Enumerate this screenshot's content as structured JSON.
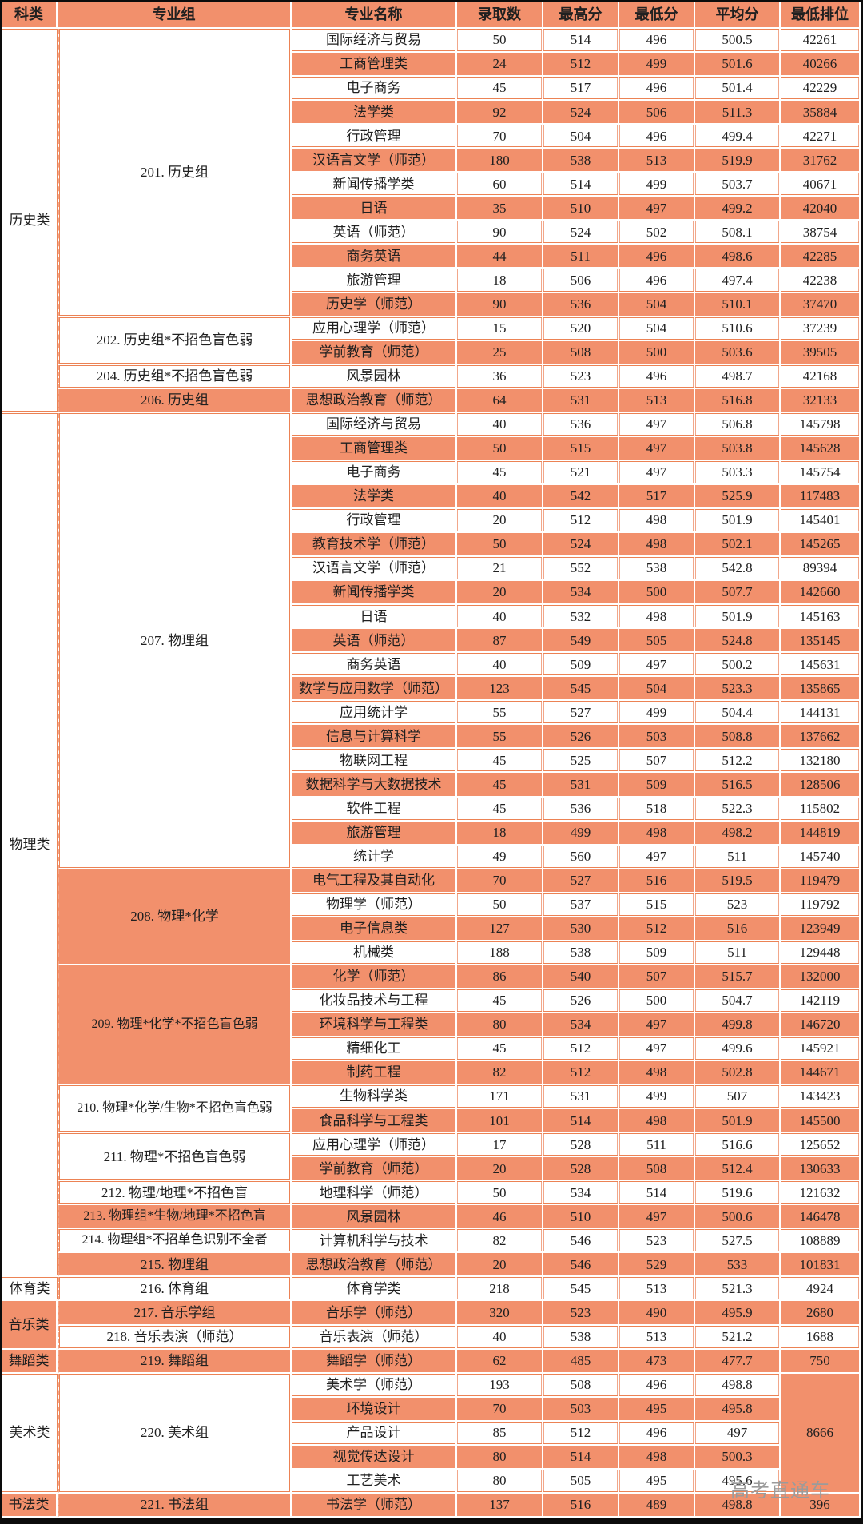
{
  "header": {
    "columns": [
      "科类",
      "专业组",
      "专业名称",
      "录取数",
      "最高分",
      "最低分",
      "平均分",
      "最低排位"
    ]
  },
  "colors": {
    "salmon_fill": "#F2906C",
    "hairline": "#EC8254",
    "dashed_line": "#F2A78A",
    "text": "#202020",
    "watermark_gray": "#9B9B9B"
  },
  "watermark": "高考直通车",
  "categories": [
    {
      "name": "历史类",
      "bg": "white",
      "groups": [
        {
          "label": "201. 历史组",
          "bg": "white",
          "rows": [
            {
              "major": "国际经济与贸易",
              "count": "50",
              "max": "514",
              "min": "496",
              "avg": "500.5",
              "rank": "42261"
            },
            {
              "major": "工商管理类",
              "count": "24",
              "max": "512",
              "min": "499",
              "avg": "501.6",
              "rank": "40266"
            },
            {
              "major": "电子商务",
              "count": "45",
              "max": "517",
              "min": "496",
              "avg": "501.4",
              "rank": "42229"
            },
            {
              "major": "法学类",
              "count": "92",
              "max": "524",
              "min": "506",
              "avg": "511.3",
              "rank": "35884"
            },
            {
              "major": "行政管理",
              "count": "70",
              "max": "504",
              "min": "496",
              "avg": "499.4",
              "rank": "42271"
            },
            {
              "major": "汉语言文学（师范）",
              "count": "180",
              "max": "538",
              "min": "513",
              "avg": "519.9",
              "rank": "31762"
            },
            {
              "major": "新闻传播学类",
              "count": "60",
              "max": "514",
              "min": "499",
              "avg": "503.7",
              "rank": "40671"
            },
            {
              "major": "日语",
              "count": "35",
              "max": "510",
              "min": "497",
              "avg": "499.2",
              "rank": "42040"
            },
            {
              "major": "英语（师范）",
              "count": "90",
              "max": "524",
              "min": "502",
              "avg": "508.1",
              "rank": "38754"
            },
            {
              "major": "商务英语",
              "count": "44",
              "max": "511",
              "min": "496",
              "avg": "498.6",
              "rank": "42285"
            },
            {
              "major": "旅游管理",
              "count": "18",
              "max": "506",
              "min": "496",
              "avg": "497.4",
              "rank": "42238"
            },
            {
              "major": "历史学（师范）",
              "count": "90",
              "max": "536",
              "min": "504",
              "avg": "510.1",
              "rank": "37470"
            }
          ]
        },
        {
          "label": "202. 历史组*不招色盲色弱",
          "bg": "white",
          "rows": [
            {
              "major": "应用心理学（师范）",
              "count": "15",
              "max": "520",
              "min": "504",
              "avg": "510.6",
              "rank": "37239"
            },
            {
              "major": "学前教育（师范）",
              "count": "25",
              "max": "508",
              "min": "500",
              "avg": "503.6",
              "rank": "39505"
            }
          ]
        },
        {
          "label": "204. 历史组*不招色盲色弱",
          "bg": "white",
          "rows": [
            {
              "major": "风景园林",
              "count": "36",
              "max": "523",
              "min": "496",
              "avg": "498.7",
              "rank": "42168"
            }
          ]
        },
        {
          "label": "206. 历史组",
          "bg": "salmon",
          "rows": [
            {
              "major": "思想政治教育（师范）",
              "count": "64",
              "max": "531",
              "min": "513",
              "avg": "516.8",
              "rank": "32133"
            }
          ]
        }
      ]
    },
    {
      "name": "物理类",
      "bg": "white",
      "groups": [
        {
          "label": "207. 物理组",
          "bg": "white",
          "rows": [
            {
              "major": "国际经济与贸易",
              "count": "40",
              "max": "536",
              "min": "497",
              "avg": "506.8",
              "rank": "145798"
            },
            {
              "major": "工商管理类",
              "count": "50",
              "max": "515",
              "min": "497",
              "avg": "503.8",
              "rank": "145628"
            },
            {
              "major": "电子商务",
              "count": "45",
              "max": "521",
              "min": "497",
              "avg": "503.3",
              "rank": "145754"
            },
            {
              "major": "法学类",
              "count": "40",
              "max": "542",
              "min": "517",
              "avg": "525.9",
              "rank": "117483"
            },
            {
              "major": "行政管理",
              "count": "20",
              "max": "512",
              "min": "498",
              "avg": "501.9",
              "rank": "145401"
            },
            {
              "major": "教育技术学（师范）",
              "count": "50",
              "max": "524",
              "min": "498",
              "avg": "502.1",
              "rank": "145265"
            },
            {
              "major": "汉语言文学（师范）",
              "count": "21",
              "max": "552",
              "min": "538",
              "avg": "542.8",
              "rank": "89394"
            },
            {
              "major": "新闻传播学类",
              "count": "20",
              "max": "534",
              "min": "500",
              "avg": "507.7",
              "rank": "142660"
            },
            {
              "major": "日语",
              "count": "40",
              "max": "532",
              "min": "498",
              "avg": "501.9",
              "rank": "145163"
            },
            {
              "major": "英语（师范）",
              "count": "87",
              "max": "549",
              "min": "505",
              "avg": "524.8",
              "rank": "135145"
            },
            {
              "major": "商务英语",
              "count": "40",
              "max": "509",
              "min": "497",
              "avg": "500.2",
              "rank": "145631"
            },
            {
              "major": "数学与应用数学（师范）",
              "count": "123",
              "max": "545",
              "min": "504",
              "avg": "523.3",
              "rank": "135865"
            },
            {
              "major": "应用统计学",
              "count": "55",
              "max": "527",
              "min": "499",
              "avg": "504.4",
              "rank": "144131"
            },
            {
              "major": "信息与计算科学",
              "count": "55",
              "max": "526",
              "min": "503",
              "avg": "508.8",
              "rank": "137662"
            },
            {
              "major": "物联网工程",
              "count": "45",
              "max": "525",
              "min": "507",
              "avg": "512.2",
              "rank": "132180"
            },
            {
              "major": "数据科学与大数据技术",
              "count": "45",
              "max": "531",
              "min": "509",
              "avg": "516.5",
              "rank": "128506"
            },
            {
              "major": "软件工程",
              "count": "45",
              "max": "536",
              "min": "518",
              "avg": "522.3",
              "rank": "115802"
            },
            {
              "major": "旅游管理",
              "count": "18",
              "max": "499",
              "min": "498",
              "avg": "498.2",
              "rank": "144819"
            },
            {
              "major": "统计学",
              "count": "49",
              "max": "560",
              "min": "497",
              "avg": "511",
              "rank": "145740"
            }
          ]
        },
        {
          "label": "208. 物理*化学",
          "bg": "salmon",
          "rows": [
            {
              "major": "电气工程及其自动化",
              "count": "70",
              "max": "527",
              "min": "516",
              "avg": "519.5",
              "rank": "119479"
            },
            {
              "major": "物理学（师范）",
              "count": "50",
              "max": "537",
              "min": "515",
              "avg": "523",
              "rank": "119792"
            },
            {
              "major": "电子信息类",
              "count": "127",
              "max": "530",
              "min": "512",
              "avg": "516",
              "rank": "123949"
            },
            {
              "major": "机械类",
              "count": "188",
              "max": "538",
              "min": "509",
              "avg": "511",
              "rank": "129448"
            }
          ]
        },
        {
          "label": "209. 物理*化学*不招色盲色弱",
          "bg": "salmon",
          "rows": [
            {
              "major": "化学（师范）",
              "count": "86",
              "max": "540",
              "min": "507",
              "avg": "515.7",
              "rank": "132000"
            },
            {
              "major": "化妆品技术与工程",
              "count": "45",
              "max": "526",
              "min": "500",
              "avg": "504.7",
              "rank": "142119"
            },
            {
              "major": "环境科学与工程类",
              "count": "80",
              "max": "534",
              "min": "497",
              "avg": "499.8",
              "rank": "146720"
            },
            {
              "major": "精细化工",
              "count": "45",
              "max": "512",
              "min": "497",
              "avg": "499.6",
              "rank": "145921"
            },
            {
              "major": "制药工程",
              "count": "82",
              "max": "512",
              "min": "498",
              "avg": "502.8",
              "rank": "144671"
            }
          ]
        },
        {
          "label": "210. 物理*化学/生物*不招色盲色弱",
          "bg": "white",
          "rows": [
            {
              "major": "生物科学类",
              "count": "171",
              "max": "531",
              "min": "499",
              "avg": "507",
              "rank": "143423"
            },
            {
              "major": "食品科学与工程类",
              "count": "101",
              "max": "514",
              "min": "498",
              "avg": "501.9",
              "rank": "145500"
            }
          ]
        },
        {
          "label": "211. 物理*不招色盲色弱",
          "bg": "white",
          "rows": [
            {
              "major": "应用心理学（师范）",
              "count": "17",
              "max": "528",
              "min": "511",
              "avg": "516.6",
              "rank": "125652"
            },
            {
              "major": "学前教育（师范）",
              "count": "20",
              "max": "528",
              "min": "508",
              "avg": "512.4",
              "rank": "130633"
            }
          ]
        },
        {
          "label": "212. 物理/地理*不招色盲",
          "bg": "white",
          "rows": [
            {
              "major": "地理科学（师范）",
              "count": "50",
              "max": "534",
              "min": "514",
              "avg": "519.6",
              "rank": "121632"
            }
          ]
        },
        {
          "label": "213. 物理组*生物/地理*不招色盲",
          "bg": "salmon",
          "rows": [
            {
              "major": "风景园林",
              "count": "46",
              "max": "510",
              "min": "497",
              "avg": "500.6",
              "rank": "146478"
            }
          ]
        },
        {
          "label": "214. 物理组*不招单色识别不全者",
          "bg": "white",
          "rows": [
            {
              "major": "计算机科学与技术",
              "count": "82",
              "max": "546",
              "min": "523",
              "avg": "527.5",
              "rank": "108889"
            }
          ]
        },
        {
          "label": "215. 物理组",
          "bg": "salmon",
          "rows": [
            {
              "major": "思想政治教育（师范）",
              "count": "20",
              "max": "546",
              "min": "529",
              "avg": "533",
              "rank": "101831"
            }
          ]
        }
      ]
    },
    {
      "name": "体育类",
      "bg": "white",
      "groups": [
        {
          "label": "216. 体育组",
          "bg": "white",
          "rows": [
            {
              "major": "体育学类",
              "count": "218",
              "max": "545",
              "min": "513",
              "avg": "521.3",
              "rank": "4924"
            }
          ]
        }
      ]
    },
    {
      "name": "音乐类",
      "bg": "salmon",
      "groups": [
        {
          "label": "217. 音乐学组",
          "bg": "salmon",
          "rows": [
            {
              "major": "音乐学（师范）",
              "count": "320",
              "max": "523",
              "min": "490",
              "avg": "495.9",
              "rank": "2680"
            }
          ]
        },
        {
          "label": "218. 音乐表演（师范）",
          "bg": "white",
          "rows": [
            {
              "major": "音乐表演（师范）",
              "count": "40",
              "max": "538",
              "min": "513",
              "avg": "521.2",
              "rank": "1688"
            }
          ]
        }
      ]
    },
    {
      "name": "舞蹈类",
      "bg": "salmon",
      "groups": [
        {
          "label": "219. 舞蹈组",
          "bg": "salmon",
          "rows": [
            {
              "major": "舞蹈学（师范）",
              "count": "62",
              "max": "485",
              "min": "473",
              "avg": "477.7",
              "rank": "750"
            }
          ]
        }
      ]
    },
    {
      "name": "美术类",
      "bg": "white",
      "groups": [
        {
          "label": "220. 美术组",
          "bg": "white",
          "group_rank": "8666",
          "group_rank_bg": "salmon",
          "rows": [
            {
              "major": "美术学（师范）",
              "count": "193",
              "max": "508",
              "min": "496",
              "avg": "498.8"
            },
            {
              "major": "环境设计",
              "count": "70",
              "max": "503",
              "min": "495",
              "avg": "495.8"
            },
            {
              "major": "产品设计",
              "count": "85",
              "max": "512",
              "min": "496",
              "avg": "497"
            },
            {
              "major": "视觉传达设计",
              "count": "80",
              "max": "514",
              "min": "498",
              "avg": "500.3"
            },
            {
              "major": "工艺美术",
              "count": "80",
              "max": "505",
              "min": "495",
              "avg": "495.6"
            }
          ]
        }
      ]
    },
    {
      "name": "书法类",
      "bg": "salmon",
      "groups": [
        {
          "label": "221. 书法组",
          "bg": "salmon",
          "rows": [
            {
              "major": "书法学（师范）",
              "count": "137",
              "max": "516",
              "min": "489",
              "avg": "498.8",
              "rank": "396"
            }
          ]
        }
      ]
    }
  ]
}
